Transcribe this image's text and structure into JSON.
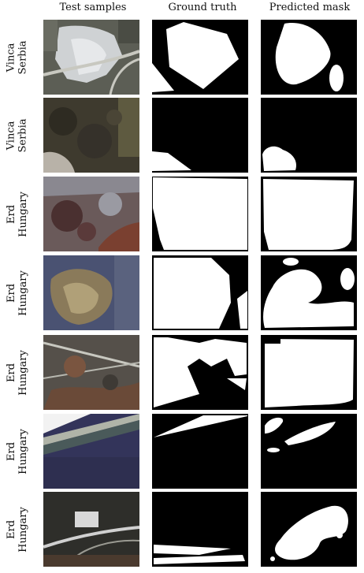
{
  "headers": {
    "col1": "Test samples",
    "col2": "Ground truth",
    "col3": "Predicted mask"
  },
  "rows": [
    {
      "line1": "Vinca",
      "line2": "Serbia"
    },
    {
      "line1": "Vinca",
      "line2": "Serbia"
    },
    {
      "line1": "Erd",
      "line2": "Hungary"
    },
    {
      "line1": "Erd",
      "line2": "Hungary"
    },
    {
      "line1": "Erd",
      "line2": "Hungary"
    },
    {
      "line1": "Erd",
      "line2": "Hungary"
    },
    {
      "line1": "Erd",
      "line2": "Hungary"
    }
  ]
}
